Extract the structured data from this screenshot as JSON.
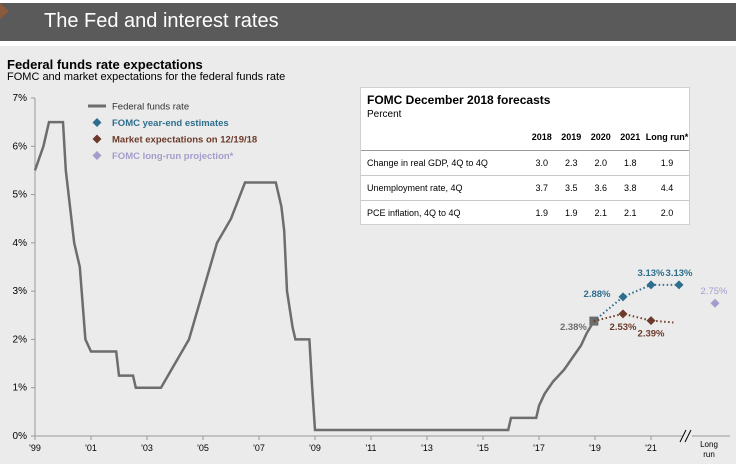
{
  "header": {
    "title": "The Fed and interest rates"
  },
  "chart_data": {
    "type": "line",
    "title": "Federal funds rate expectations",
    "subtitle": "FOMC and market expectations for the federal funds rate",
    "ylim": [
      0,
      7
    ],
    "y_ticks": [
      "0%",
      "1%",
      "2%",
      "3%",
      "4%",
      "5%",
      "6%",
      "7%"
    ],
    "x_ticks": [
      "'99",
      "'01",
      "'03",
      "'05",
      "'07",
      "'09",
      "'11",
      "'13",
      "'15",
      "'17",
      "'19",
      "'21"
    ],
    "long_run_tick": "Long run",
    "legend": [
      {
        "label": "Federal funds rate",
        "color": "#6d6d6d",
        "marker": "line"
      },
      {
        "label": "FOMC year-end estimates",
        "color": "#2e6e8e",
        "marker": "diamond"
      },
      {
        "label": "Market expectations on 12/19/18",
        "color": "#6b3a2a",
        "marker": "diamond"
      },
      {
        "label": "FOMC long-run projection*",
        "color": "#a59ccc",
        "marker": "diamond"
      }
    ],
    "series": [
      {
        "name": "Federal funds rate",
        "color": "#6d6d6d",
        "points": [
          [
            1999.0,
            5.5
          ],
          [
            1999.3,
            6.0
          ],
          [
            1999.5,
            6.5
          ],
          [
            2000.0,
            6.5
          ],
          [
            2000.1,
            5.5
          ],
          [
            2000.4,
            4.0
          ],
          [
            2000.6,
            3.5
          ],
          [
            2000.8,
            2.0
          ],
          [
            2001.0,
            1.75
          ],
          [
            2001.9,
            1.75
          ],
          [
            2002.0,
            1.25
          ],
          [
            2002.5,
            1.25
          ],
          [
            2002.6,
            1.0
          ],
          [
            2003.5,
            1.0
          ],
          [
            2004.5,
            2.0
          ],
          [
            2005.0,
            3.0
          ],
          [
            2005.5,
            4.0
          ],
          [
            2006.0,
            4.5
          ],
          [
            2006.5,
            5.25
          ],
          [
            2007.6,
            5.25
          ],
          [
            2007.8,
            4.75
          ],
          [
            2007.9,
            4.25
          ],
          [
            2008.0,
            3.0
          ],
          [
            2008.2,
            2.25
          ],
          [
            2008.3,
            2.0
          ],
          [
            2008.8,
            2.0
          ],
          [
            2008.9,
            1.0
          ],
          [
            2009.0,
            0.125
          ],
          [
            2015.9,
            0.125
          ],
          [
            2016.0,
            0.375
          ],
          [
            2016.9,
            0.375
          ],
          [
            2017.0,
            0.625
          ],
          [
            2017.2,
            0.875
          ],
          [
            2017.5,
            1.125
          ],
          [
            2017.9,
            1.375
          ],
          [
            2018.2,
            1.625
          ],
          [
            2018.5,
            1.875
          ],
          [
            2018.7,
            2.125
          ],
          [
            2018.96,
            2.38
          ]
        ]
      },
      {
        "name": "FOMC year-end estimates",
        "color": "#2e6e8e",
        "points": [
          [
            2018.96,
            2.38
          ],
          [
            2020.0,
            2.88
          ],
          [
            2021.0,
            3.13
          ],
          [
            2022.0,
            3.13
          ]
        ],
        "labels": [
          "2.88%",
          "3.13%",
          "3.13%"
        ]
      },
      {
        "name": "Market expectations on 12/19/18",
        "color": "#6b3a2a",
        "points": [
          [
            2018.96,
            2.38
          ],
          [
            2020.0,
            2.53
          ],
          [
            2021.0,
            2.39
          ],
          [
            2021.8,
            2.35
          ]
        ],
        "labels": [
          "2.53%",
          "2.39%"
        ]
      },
      {
        "name": "FOMC long-run projection*",
        "color": "#a59ccc",
        "points": [
          [
            "Long run",
            2.75
          ]
        ],
        "labels": [
          "2.75%"
        ]
      }
    ],
    "current_label": "2.38%"
  },
  "forecast_table": {
    "title": "FOMC December 2018 forecasts",
    "subtitle": "Percent",
    "columns": [
      "2018",
      "2019",
      "2020",
      "2021",
      "Long run*"
    ],
    "rows": [
      {
        "label": "Change in real GDP, 4Q to 4Q",
        "values": [
          "3.0",
          "2.3",
          "2.0",
          "1.8",
          "1.9"
        ]
      },
      {
        "label": "Unemployment rate, 4Q",
        "values": [
          "3.7",
          "3.5",
          "3.6",
          "3.8",
          "4.4"
        ]
      },
      {
        "label": "PCE inflation, 4Q to 4Q",
        "values": [
          "1.9",
          "1.9",
          "2.1",
          "2.1",
          "2.0"
        ]
      }
    ]
  }
}
